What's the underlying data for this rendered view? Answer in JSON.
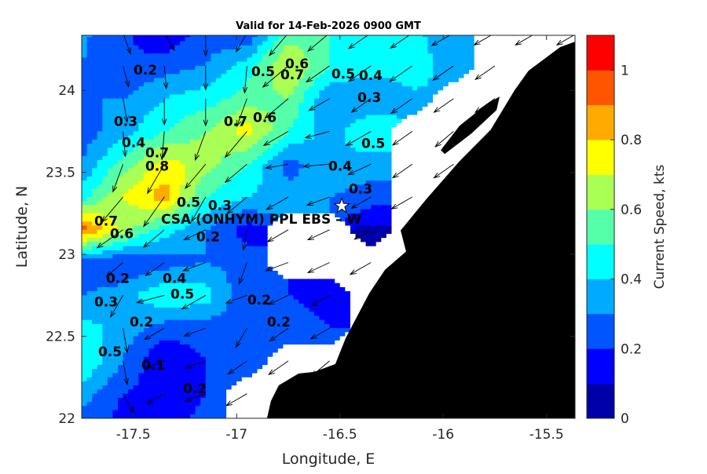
{
  "chart_data": {
    "type": "heatmap",
    "subtype": "filled-contour-with-vectors",
    "title": "Valid for 14-Feb-2026 0900 GMT",
    "xlabel": "Longitude, E",
    "ylabel": "Latitude, N",
    "xlim": [
      -17.75,
      -15.362
    ],
    "ylim": [
      22.0,
      24.336
    ],
    "xticks": [
      -17.5,
      -17,
      -16.5,
      -16,
      -15.5
    ],
    "xtick_labels": [
      "-17.5",
      "-17",
      "-16.5",
      "-16",
      "-15.5"
    ],
    "yticks": [
      22,
      22.5,
      23,
      23.5,
      24
    ],
    "ytick_labels": [
      "22",
      "22.5",
      "23",
      "23.5",
      "24"
    ],
    "colorbar": {
      "label": "Current Speed, kts",
      "range": [
        0,
        1.1
      ],
      "levels": [
        0,
        0.1,
        0.2,
        0.3,
        0.4,
        0.5,
        0.6,
        0.7,
        0.8,
        0.9,
        1.0,
        1.1
      ],
      "colors": [
        "#0000aa",
        "#0000ff",
        "#0055ff",
        "#00aaff",
        "#00ffff",
        "#55ffaa",
        "#aaff55",
        "#ffff00",
        "#ffaa00",
        "#ff5500",
        "#ff0000"
      ],
      "ticks": [
        0,
        0.2,
        0.4,
        0.6,
        0.8,
        1
      ],
      "tick_labels": [
        "0",
        "0.2",
        "0.4",
        "0.6",
        "0.8",
        "1"
      ]
    },
    "grid": {
      "lon": [
        -17.75,
        -17.55,
        -17.35,
        -17.15,
        -16.95,
        -16.75,
        -16.55,
        -16.35,
        -16.15,
        -15.95,
        -15.75,
        -15.55,
        -15.35
      ],
      "lat": [
        24.35,
        24.15,
        23.95,
        23.75,
        23.55,
        23.35,
        23.15,
        22.95,
        22.75,
        22.55,
        22.35,
        22.15,
        21.95
      ],
      "speed_kts": [
        [
          0.32,
          0.22,
          0.12,
          0.25,
          0.2,
          0.55,
          0.5,
          0.45,
          0.42,
          0.35,
          null,
          null,
          null
        ],
        [
          0.3,
          0.2,
          0.25,
          0.3,
          0.45,
          0.72,
          0.5,
          0.45,
          0.45,
          0.35,
          null,
          null,
          null
        ],
        [
          0.3,
          0.3,
          0.4,
          0.45,
          0.55,
          0.6,
          0.3,
          0.3,
          0.38,
          null,
          null,
          null,
          null
        ],
        [
          0.25,
          0.35,
          0.5,
          0.6,
          0.75,
          0.5,
          0.35,
          0.5,
          null,
          null,
          null,
          null,
          null
        ],
        [
          0.3,
          0.55,
          0.75,
          0.65,
          0.5,
          0.25,
          0.4,
          0.35,
          null,
          null,
          null,
          null,
          null
        ],
        [
          0.45,
          0.7,
          0.85,
          0.5,
          0.4,
          0.35,
          0.3,
          0.25,
          null,
          null,
          null,
          null,
          null
        ],
        [
          0.95,
          0.65,
          0.45,
          0.3,
          0.15,
          null,
          null,
          0.08,
          null,
          null,
          null,
          null,
          null
        ],
        [
          0.22,
          0.2,
          0.25,
          0.3,
          0.25,
          null,
          null,
          null,
          null,
          null,
          null,
          null,
          null
        ],
        [
          0.3,
          0.35,
          0.5,
          0.45,
          0.22,
          0.2,
          0.15,
          null,
          null,
          null,
          null,
          null,
          null
        ],
        [
          0.45,
          0.35,
          0.25,
          0.25,
          0.22,
          0.25,
          0.2,
          null,
          null,
          null,
          null,
          null,
          null
        ],
        [
          0.5,
          0.3,
          0.1,
          0.2,
          0.25,
          null,
          null,
          null,
          null,
          null,
          null,
          null,
          null
        ],
        [
          0.35,
          0.2,
          0.15,
          0.2,
          null,
          null,
          null,
          null,
          null,
          null,
          null,
          null,
          null
        ],
        [
          0.25,
          0.15,
          0.18,
          0.22,
          null,
          null,
          null,
          null,
          null,
          null,
          null,
          null,
          null
        ]
      ],
      "direction_deg": [
        [
          -75,
          -70,
          -60,
          -90,
          -120,
          -130,
          -140,
          -145,
          -145,
          -150,
          -150,
          -150,
          -150
        ],
        [
          -60,
          -75,
          -85,
          -90,
          -95,
          -140,
          -145,
          -145,
          -145,
          -145,
          -145,
          -145,
          -145
        ],
        [
          -65,
          -80,
          -90,
          -90,
          -110,
          -140,
          -150,
          -145,
          -145,
          -145,
          -145,
          -145,
          -145
        ],
        [
          -70,
          -85,
          -95,
          -110,
          -130,
          -150,
          -165,
          -150,
          -145,
          -140,
          -145,
          -145,
          -145
        ],
        [
          -95,
          -110,
          -120,
          -130,
          -140,
          -170,
          -175,
          -155,
          -145,
          -145,
          -145,
          -145,
          -145
        ],
        [
          -130,
          -130,
          -125,
          -120,
          -140,
          -150,
          -160,
          -150,
          -150,
          -145,
          -145,
          -145,
          -145
        ],
        [
          -150,
          -145,
          -140,
          -155,
          -100,
          -150,
          -155,
          -150,
          -150,
          -145,
          -145,
          -145,
          -145
        ],
        [
          -150,
          -140,
          -145,
          -160,
          -110,
          -160,
          -155,
          -150,
          -145,
          -145,
          -145,
          -145,
          -145
        ],
        [
          -130,
          -120,
          -165,
          -150,
          -160,
          -155,
          -150,
          -130,
          -145,
          -145,
          -145,
          -145,
          -145
        ],
        [
          -90,
          -80,
          -150,
          -160,
          -120,
          -145,
          -150,
          -120,
          -145,
          -145,
          -145,
          -145,
          -145
        ],
        [
          -110,
          -80,
          -160,
          -160,
          -145,
          -145,
          -140,
          -120,
          -145,
          -145,
          -145,
          -145,
          -145
        ],
        [
          -90,
          -60,
          -150,
          -160,
          -150,
          -145,
          -140,
          -145,
          -145,
          -145,
          -145,
          -145,
          -145
        ],
        [
          -90,
          -90,
          -150,
          -160,
          -150,
          -145,
          -145,
          -145,
          -145,
          -145,
          -145,
          -145,
          -145
        ]
      ]
    },
    "land": [
      [
        -15.362,
        24.297
      ],
      [
        -15.434,
        24.264
      ],
      [
        -15.587,
        24.12
      ],
      [
        -15.655,
        24.0
      ],
      [
        -15.77,
        23.76
      ],
      [
        -15.921,
        23.568
      ],
      [
        -16.081,
        23.338
      ],
      [
        -16.206,
        23.146
      ],
      [
        -16.18,
        23.017
      ],
      [
        -16.282,
        22.906
      ],
      [
        -16.358,
        22.763
      ],
      [
        -16.472,
        22.489
      ],
      [
        -16.522,
        22.331
      ],
      [
        -16.625,
        22.283
      ],
      [
        -16.7,
        22.273
      ],
      [
        -16.796,
        22.201
      ],
      [
        -16.834,
        22.106
      ],
      [
        -16.853,
        22.0
      ],
      [
        -15.362,
        22.0
      ]
    ],
    "island": [
      [
        -16.012,
        23.635
      ],
      [
        -15.921,
        23.784
      ],
      [
        -15.788,
        23.918
      ],
      [
        -15.727,
        23.962
      ],
      [
        -15.742,
        23.88
      ],
      [
        -15.864,
        23.736
      ],
      [
        -15.993,
        23.612
      ]
    ],
    "station": {
      "label": "CSA (ONHYM) PPL EBS  – W",
      "lon": -16.491,
      "lat": 23.295
    },
    "contour_labels": [
      {
        "text": "0.2",
        "lon": -17.442,
        "lat": 24.12
      },
      {
        "text": "0.3",
        "lon": -17.537,
        "lat": 23.808
      },
      {
        "text": "0.4",
        "lon": -17.499,
        "lat": 23.679
      },
      {
        "text": "0.7",
        "lon": -17.385,
        "lat": 23.616
      },
      {
        "text": "0.8",
        "lon": -17.385,
        "lat": 23.535
      },
      {
        "text": "0.5",
        "lon": -16.872,
        "lat": 24.11
      },
      {
        "text": "0.6",
        "lon": -16.708,
        "lat": 24.158
      },
      {
        "text": "0.7",
        "lon": -16.731,
        "lat": 24.091
      },
      {
        "text": "0.5",
        "lon": -16.484,
        "lat": 24.096
      },
      {
        "text": "0.4",
        "lon": -16.351,
        "lat": 24.086
      },
      {
        "text": "0.3",
        "lon": -16.358,
        "lat": 23.952
      },
      {
        "text": "0.7",
        "lon": -17.005,
        "lat": 23.808
      },
      {
        "text": "0.6",
        "lon": -16.864,
        "lat": 23.832
      },
      {
        "text": "0.5",
        "lon": -16.339,
        "lat": 23.674
      },
      {
        "text": "0.4",
        "lon": -16.499,
        "lat": 23.535
      },
      {
        "text": "0.3",
        "lon": -16.4,
        "lat": 23.396
      },
      {
        "text": "0.5",
        "lon": -17.233,
        "lat": 23.314
      },
      {
        "text": "0.3",
        "lon": -17.081,
        "lat": 23.295
      },
      {
        "text": "0.2",
        "lon": -17.138,
        "lat": 23.103
      },
      {
        "text": "0.7",
        "lon": -17.632,
        "lat": 23.199
      },
      {
        "text": "0.6",
        "lon": -17.556,
        "lat": 23.122
      },
      {
        "text": "0.2",
        "lon": -17.575,
        "lat": 22.849
      },
      {
        "text": "0.3",
        "lon": -17.632,
        "lat": 22.705
      },
      {
        "text": "0.2",
        "lon": -17.461,
        "lat": 22.585
      },
      {
        "text": "0.4",
        "lon": -17.301,
        "lat": 22.849
      },
      {
        "text": "0.5",
        "lon": -17.263,
        "lat": 22.753
      },
      {
        "text": "0.2",
        "lon": -16.891,
        "lat": 22.719
      },
      {
        "text": "0.2",
        "lon": -16.796,
        "lat": 22.585
      },
      {
        "text": "0.5",
        "lon": -17.613,
        "lat": 22.403
      },
      {
        "text": "0.1",
        "lon": -17.404,
        "lat": 22.321
      },
      {
        "text": "0.2",
        "lon": -17.202,
        "lat": 22.177
      }
    ]
  }
}
